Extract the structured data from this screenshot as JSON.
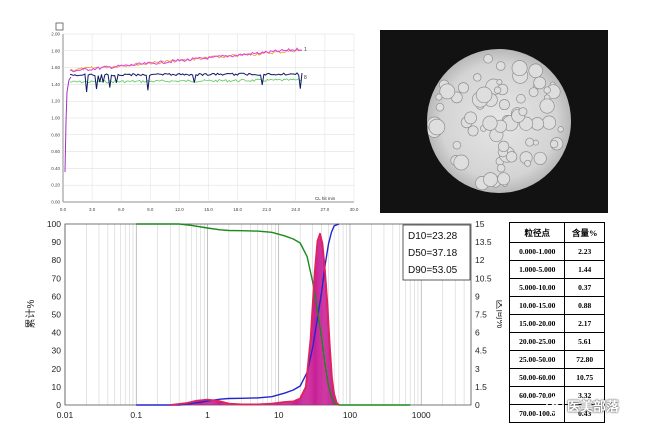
{
  "top_chart": {
    "y_ticks": [
      "2.00",
      "1.80",
      "1.60",
      "1.40",
      "1.20",
      "1.00",
      "0.80",
      "0.60",
      "0.40",
      "0.20",
      "0.00"
    ],
    "x_ticks": [
      "0.0",
      "3.0",
      "6.0",
      "9.0",
      "12.0",
      "15.0",
      "18.0",
      "21.0",
      "24.0",
      "27.0",
      "30.0"
    ],
    "x_unit": "CL hit  min",
    "series_labels": [
      "1",
      "8"
    ]
  },
  "chart_data": {
    "type": "line",
    "title": "",
    "xlabel": "",
    "ylabel": "累计%",
    "ylabel_right": "区间%",
    "x_scale": "log",
    "x_ticks": [
      "0.01",
      "0.1",
      "1",
      "10",
      "100",
      "1000"
    ],
    "y_ticks": [
      "0",
      "10",
      "20",
      "30",
      "40",
      "50",
      "60",
      "70",
      "80",
      "90",
      "100"
    ],
    "y_right_ticks": [
      "0",
      "1.5",
      "3",
      "4.5",
      "6",
      "7.5",
      "9",
      "10.5",
      "12",
      "13.5",
      "15"
    ],
    "ylim": [
      0,
      100
    ],
    "ylim_right": [
      0,
      15
    ],
    "stats": {
      "D10": "D10=23.28",
      "D50": "D50=37.18",
      "D90": "D90=53.05"
    },
    "series": [
      {
        "name": "cumulative",
        "axis": "left",
        "color": "#2525d0",
        "x": [
          0.1,
          0.4,
          0.6,
          1,
          1.5,
          2,
          3,
          5,
          8,
          12,
          16,
          20,
          25,
          30,
          35,
          40,
          45,
          50,
          55,
          60,
          70
        ],
        "y": [
          0,
          0,
          0.8,
          2.2,
          3.2,
          3.6,
          3.7,
          3.9,
          4.6,
          6.5,
          8.3,
          10.5,
          18,
          32,
          48,
          62,
          78,
          89,
          95.5,
          99,
          100
        ]
      },
      {
        "name": "cumulative-undersize",
        "axis": "left",
        "color": "#1a8a1a",
        "x": [
          0.1,
          0.4,
          0.6,
          1,
          1.5,
          2,
          3,
          5,
          8,
          12,
          16,
          20,
          25,
          30,
          35,
          40,
          45,
          50,
          55,
          60,
          70,
          80,
          700
        ],
        "y": [
          100,
          100,
          99.2,
          97.8,
          96.8,
          96.4,
          96.3,
          96.1,
          95.4,
          93.5,
          91.7,
          89.5,
          82,
          68,
          52,
          38,
          22,
          11,
          4.5,
          1,
          0,
          0,
          0
        ]
      },
      {
        "name": "frequency",
        "axis": "right",
        "color": "#e0245e",
        "x": [
          0.3,
          0.5,
          0.7,
          1,
          1.4,
          2,
          3,
          5,
          8,
          12,
          16,
          20,
          24,
          28,
          32,
          35,
          38,
          41,
          44,
          48,
          52,
          56,
          60,
          65,
          70
        ],
        "y": [
          0,
          0.15,
          0.35,
          0.45,
          0.35,
          0.12,
          0.05,
          0.05,
          0.12,
          0.25,
          0.3,
          0.55,
          1.5,
          5.5,
          11,
          13.6,
          14.2,
          13.4,
          11.5,
          8.5,
          5,
          2.2,
          0.9,
          0.2,
          0
        ]
      }
    ]
  },
  "table": {
    "headers": [
      "粒径点",
      "含量%"
    ],
    "rows": [
      [
        "0.000-1.000",
        "2.23"
      ],
      [
        "1.000-5.000",
        "1.44"
      ],
      [
        "5.000-10.00",
        "0.37"
      ],
      [
        "10.00-15.00",
        "0.88"
      ],
      [
        "15.00-20.00",
        "2.17"
      ],
      [
        "20.00-25.00",
        "5.61"
      ],
      [
        "25.00-50.00",
        "72.80"
      ],
      [
        "50.00-60.00",
        "10.75"
      ],
      [
        "60.00-70.00",
        "3.32"
      ],
      [
        "70.00-100.0",
        "0.43"
      ]
    ]
  },
  "watermark": {
    "text": "医美部落"
  },
  "colors": {
    "magenta": "#e040e0",
    "navy": "#0d1a60",
    "green": "#5cc85c",
    "orange": "#e8a020",
    "blue": "#2525d0",
    "dgreen": "#1a8a1a",
    "pink": "#e0245e"
  }
}
